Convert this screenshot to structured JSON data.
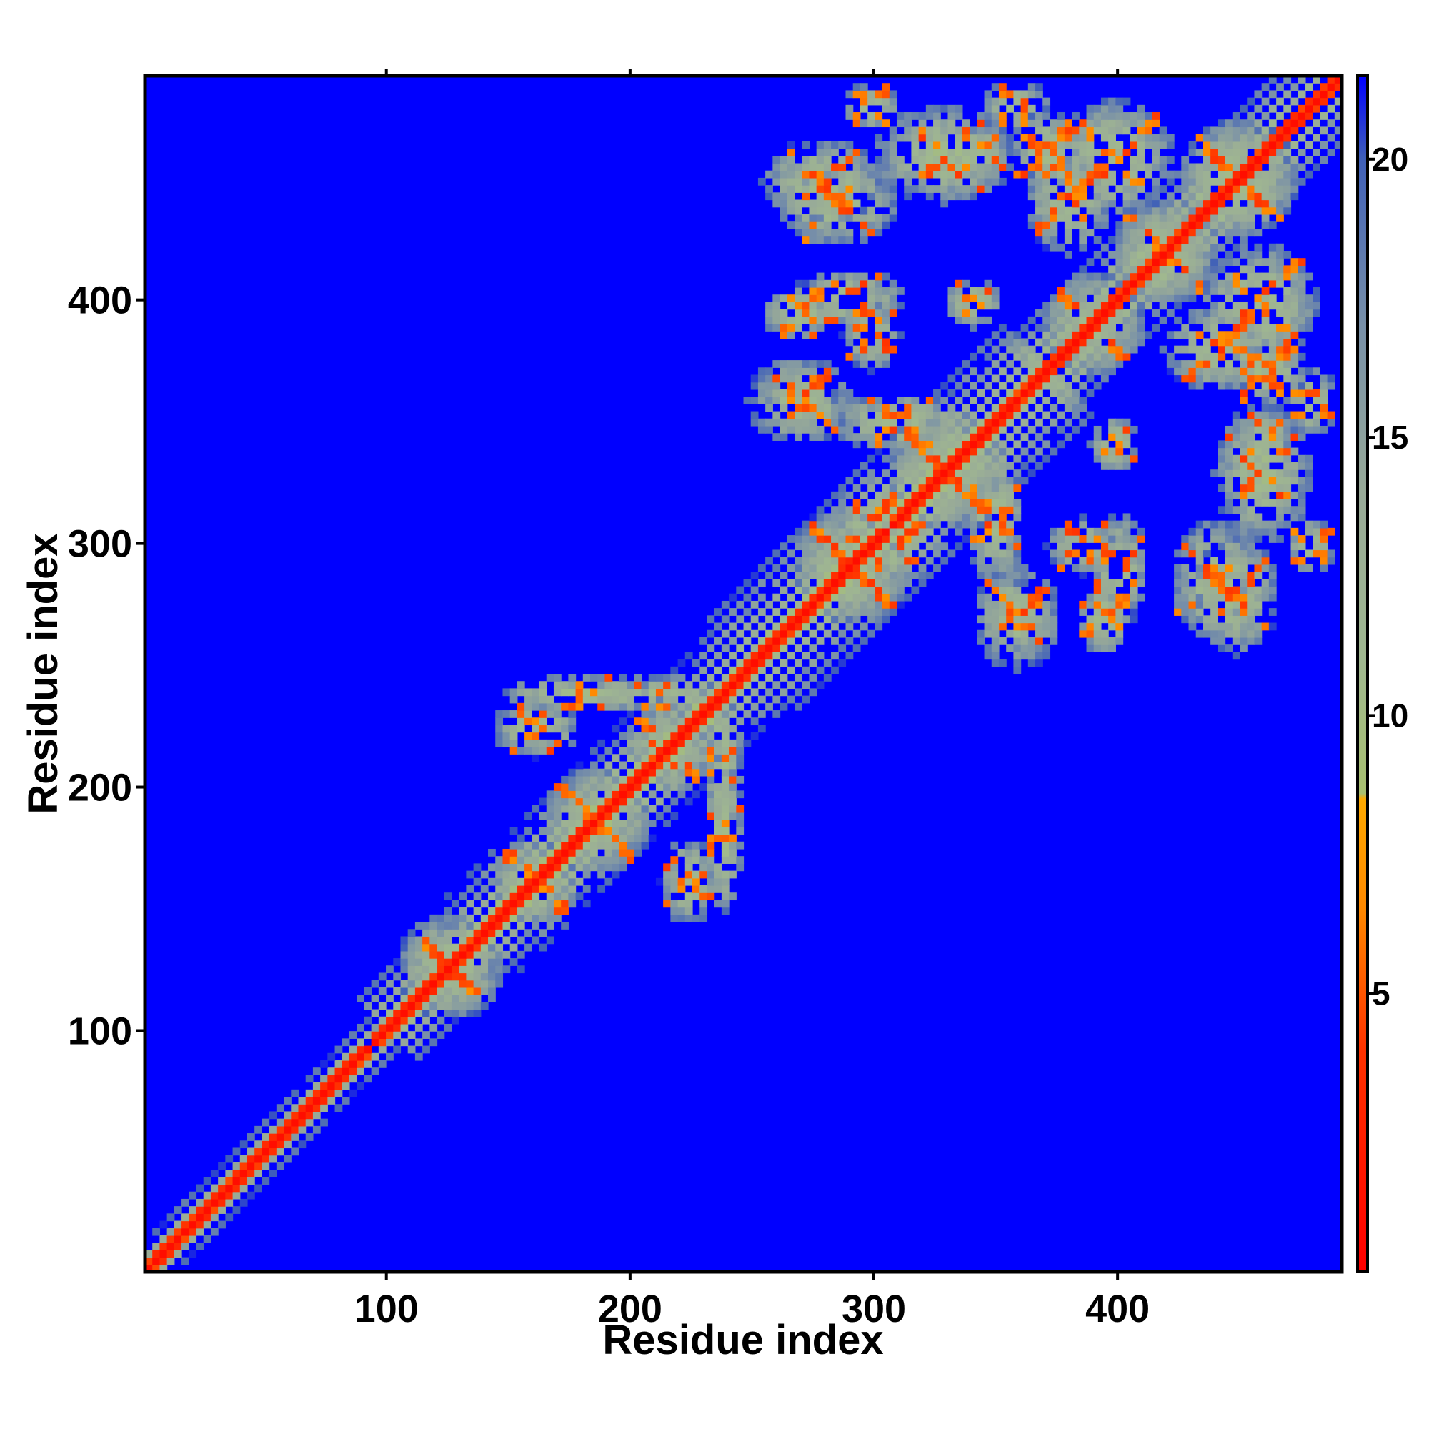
{
  "chart_data": {
    "type": "heatmap",
    "title": "",
    "xlabel": "Residue index",
    "ylabel": "Residue index",
    "xlim": [
      1,
      492
    ],
    "ylim": [
      1,
      492
    ],
    "x_ticks": [
      100,
      200,
      300,
      400
    ],
    "y_ticks": [
      100,
      200,
      300,
      400
    ],
    "colorbar": {
      "range": [
        0,
        21.5
      ],
      "ticks": [
        5,
        10,
        15,
        20
      ],
      "stops": [
        {
          "value": 0,
          "color": "#ff0000"
        },
        {
          "value": 4,
          "color": "#ff3300"
        },
        {
          "value": 6.5,
          "color": "#ff8800"
        },
        {
          "value": 8.5,
          "color": "#ffaa00"
        },
        {
          "value": 8.6,
          "color": "#a8c070"
        },
        {
          "value": 11,
          "color": "#a0b890"
        },
        {
          "value": 14,
          "color": "#98aa98"
        },
        {
          "value": 17,
          "color": "#7890a8"
        },
        {
          "value": 20,
          "color": "#4060b8"
        },
        {
          "value": 21.5,
          "color": "#0000ff"
        }
      ]
    },
    "background_value": 21.5,
    "background_color": "#0000ff",
    "diagonal": {
      "from": 1,
      "to": 492,
      "value": 1
    },
    "contact_bands": [
      {
        "x": [
          1,
          110
        ],
        "y": [
          1,
          110
        ],
        "width": 6
      },
      {
        "x": [
          100,
          150
        ],
        "y": [
          100,
          150
        ],
        "width": 12
      },
      {
        "x": [
          140,
          250
        ],
        "y": [
          140,
          250
        ],
        "width": 14
      },
      {
        "x": [
          250,
          370
        ],
        "y": [
          250,
          370
        ],
        "width": 18
      },
      {
        "x": [
          370,
          492
        ],
        "y": [
          370,
          492
        ],
        "width": 14
      }
    ],
    "contact_clusters": [
      {
        "x": 125,
        "y": 125,
        "rx": 22,
        "ry": 22
      },
      {
        "x": 160,
        "y": 160,
        "rx": 18,
        "ry": 18
      },
      {
        "x": 185,
        "y": 185,
        "rx": 22,
        "ry": 22
      },
      {
        "x": 215,
        "y": 215,
        "rx": 18,
        "ry": 18
      },
      {
        "x": 210,
        "y": 238,
        "rx": 30,
        "ry": 8
      },
      {
        "x": 238,
        "y": 180,
        "rx": 8,
        "ry": 35
      },
      {
        "x": 160,
        "y": 225,
        "rx": 18,
        "ry": 12
      },
      {
        "x": 290,
        "y": 290,
        "rx": 25,
        "ry": 25
      },
      {
        "x": 330,
        "y": 330,
        "rx": 25,
        "ry": 25
      },
      {
        "x": 310,
        "y": 350,
        "rx": 30,
        "ry": 12
      },
      {
        "x": 270,
        "y": 360,
        "rx": 16,
        "ry": 10
      },
      {
        "x": 290,
        "y": 400,
        "rx": 22,
        "ry": 12
      },
      {
        "x": 280,
        "y": 450,
        "rx": 25,
        "ry": 18
      },
      {
        "x": 330,
        "y": 460,
        "rx": 30,
        "ry": 20
      },
      {
        "x": 340,
        "y": 400,
        "rx": 12,
        "ry": 10
      },
      {
        "x": 360,
        "y": 270,
        "rx": 18,
        "ry": 22
      },
      {
        "x": 385,
        "y": 300,
        "rx": 15,
        "ry": 12
      },
      {
        "x": 395,
        "y": 270,
        "rx": 12,
        "ry": 15
      },
      {
        "x": 390,
        "y": 390,
        "rx": 22,
        "ry": 22
      },
      {
        "x": 420,
        "y": 420,
        "rx": 22,
        "ry": 22
      },
      {
        "x": 450,
        "y": 450,
        "rx": 25,
        "ry": 25
      },
      {
        "x": 400,
        "y": 460,
        "rx": 25,
        "ry": 25
      },
      {
        "x": 440,
        "y": 380,
        "rx": 22,
        "ry": 18
      },
      {
        "x": 460,
        "y": 345,
        "rx": 12,
        "ry": 10
      },
      {
        "x": 440,
        "y": 285,
        "rx": 18,
        "ry": 25
      },
      {
        "x": 480,
        "y": 300,
        "rx": 10,
        "ry": 12
      },
      {
        "x": 480,
        "y": 360,
        "rx": 10,
        "ry": 15
      },
      {
        "x": 370,
        "y": 460,
        "rx": 15,
        "ry": 18
      },
      {
        "x": 300,
        "y": 310,
        "rx": 15,
        "ry": 20
      }
    ]
  }
}
